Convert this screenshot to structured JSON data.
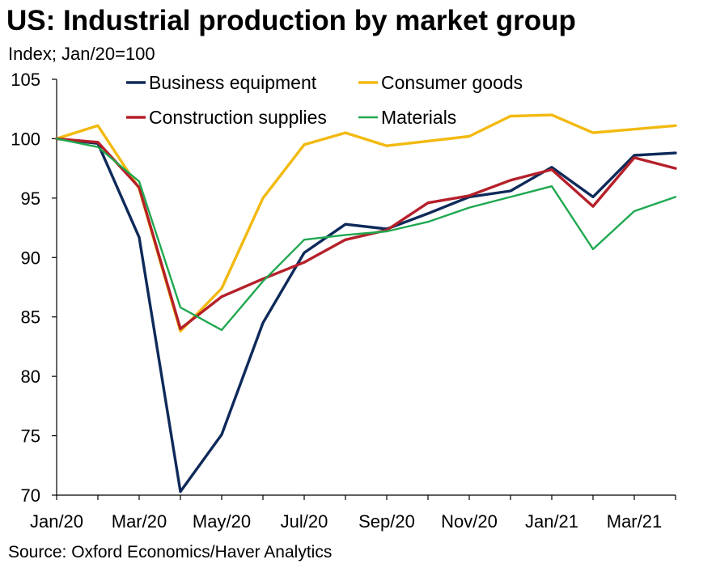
{
  "title": "US: Industrial production by market group",
  "subtitle": "Index; Jan/20=100",
  "source": "Source: Oxford Economics/Haver Analytics",
  "chart_data": {
    "type": "line",
    "title": "US: Industrial production by market group",
    "subtitle": "Index; Jan/20=100",
    "xlabel": "",
    "ylabel": "",
    "ylim": [
      70,
      105
    ],
    "yticks": [
      70,
      75,
      80,
      85,
      90,
      95,
      100,
      105
    ],
    "x": [
      "Jan/20",
      "Feb/20",
      "Mar/20",
      "Apr/20",
      "May/20",
      "Jun/20",
      "Jul/20",
      "Aug/20",
      "Sep/20",
      "Oct/20",
      "Nov/20",
      "Dec/20",
      "Jan/21",
      "Feb/21",
      "Mar/21",
      "Apr/21"
    ],
    "xtick_labels": [
      "Jan/20",
      "Mar/20",
      "May/20",
      "Jul/20",
      "Sep/20",
      "Nov/20",
      "Jan/21",
      "Mar/21"
    ],
    "grid": false,
    "legend": "top",
    "series": [
      {
        "name": "Business equipment",
        "color": "#0e2a5a",
        "values": [
          100.0,
          99.6,
          91.7,
          70.3,
          75.1,
          84.5,
          90.4,
          92.8,
          92.4,
          93.7,
          95.1,
          95.6,
          97.6,
          95.1,
          98.6,
          98.8
        ]
      },
      {
        "name": "Consumer goods",
        "color": "#f2b90f",
        "values": [
          100.0,
          101.1,
          95.8,
          83.8,
          87.4,
          95.0,
          99.5,
          100.5,
          99.4,
          99.8,
          100.2,
          101.9,
          102.0,
          100.5,
          100.8,
          101.1
        ]
      },
      {
        "name": "Construction supplies",
        "color": "#b5202a",
        "values": [
          100.0,
          99.7,
          95.9,
          84.0,
          86.7,
          88.2,
          89.6,
          91.5,
          92.3,
          94.6,
          95.2,
          96.5,
          97.4,
          94.3,
          98.4,
          97.5
        ]
      },
      {
        "name": "Materials",
        "color": "#1fa84f",
        "values": [
          100.0,
          99.3,
          96.4,
          85.8,
          83.9,
          88.0,
          91.5,
          91.9,
          92.2,
          93.0,
          94.2,
          95.1,
          96.0,
          90.7,
          93.9,
          95.1
        ]
      }
    ]
  }
}
